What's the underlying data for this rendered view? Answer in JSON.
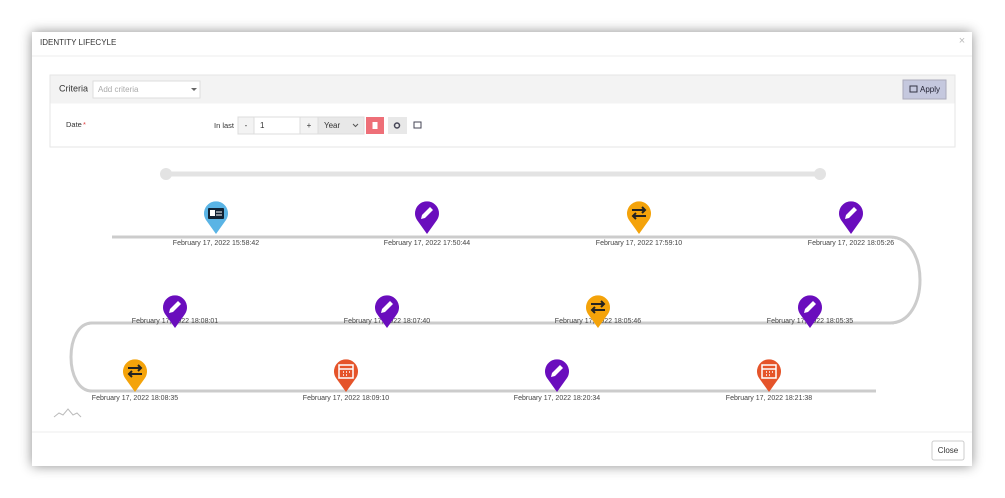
{
  "dialog": {
    "title": "IDENTITY LIFECYLE",
    "close_icon": "×"
  },
  "criteria": {
    "label": "Criteria",
    "placeholder": "Add criteria",
    "apply": "Apply",
    "date_label": "Date",
    "required": "*",
    "in_last": "In last",
    "minus": "-",
    "count": "1",
    "plus": "+",
    "unit": "Year"
  },
  "timeline": {
    "events": [
      {
        "label": "February 17, 2022 15:58:42"
      },
      {
        "label": "February 17, 2022 17:50:44"
      },
      {
        "label": "February 17, 2022 17:59:10"
      },
      {
        "label": "February 17, 2022 18:05:26"
      },
      {
        "label": "February 17, 2022 18:08:01"
      },
      {
        "label": "February 17, 2022 18:07:40"
      },
      {
        "label": "February 17, 2022 18:05:46"
      },
      {
        "label": "February 17, 2022 18:05:35"
      },
      {
        "label": "February 17, 2022 18:08:35"
      },
      {
        "label": "February 17, 2022 18:09:10"
      },
      {
        "label": "February 17, 2022 18:20:34"
      },
      {
        "label": "February 17, 2022 18:21:38"
      }
    ]
  },
  "footer": {
    "close": "Close"
  }
}
